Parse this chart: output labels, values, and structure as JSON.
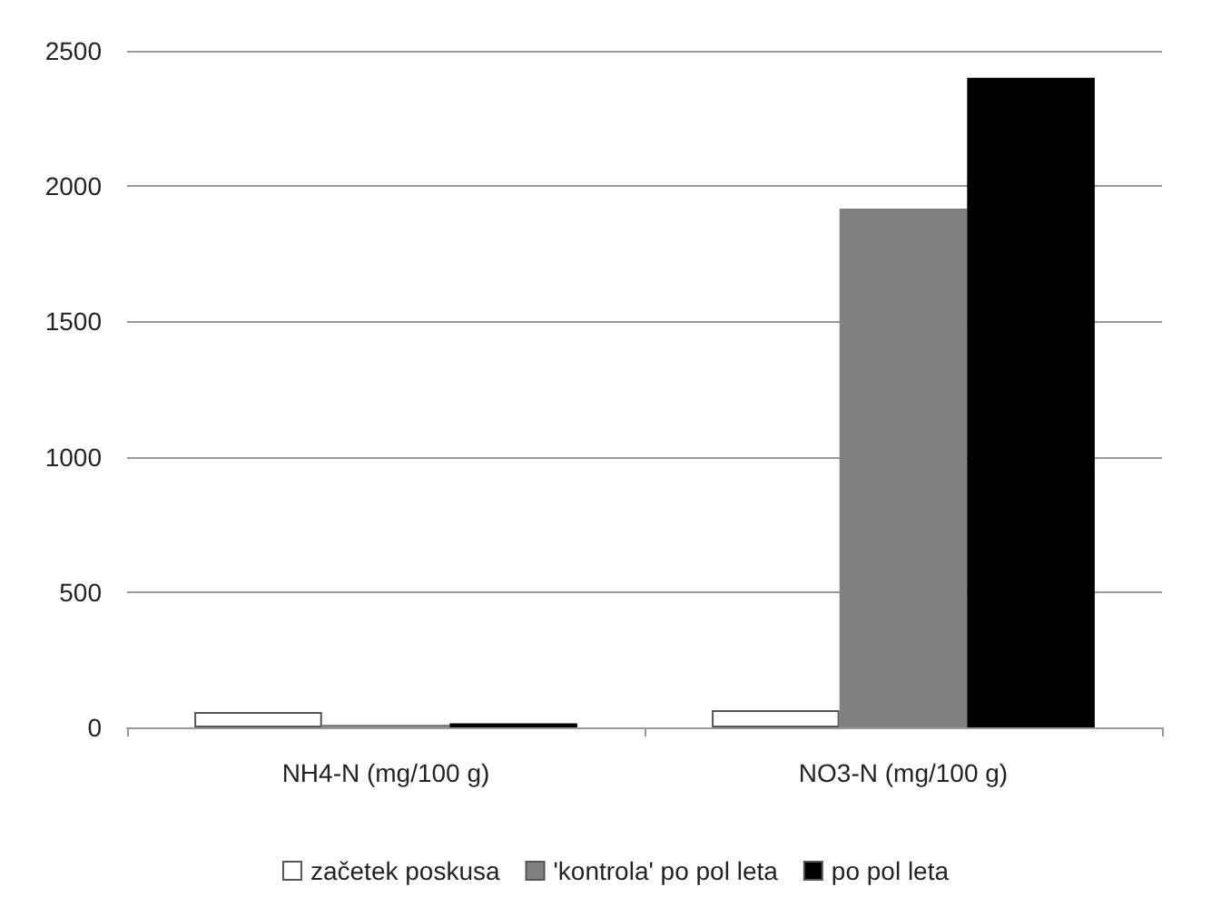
{
  "chart_data": {
    "type": "bar",
    "categories": [
      "NH4-N (mg/100 g)",
      "NO3-N (mg/100 g)"
    ],
    "series": [
      {
        "name": "začetek poskusa",
        "color": "#ffffff",
        "values": [
          57,
          64
        ]
      },
      {
        "name": "'kontrola' po pol leta",
        "color": "#808080",
        "values": [
          10,
          1917
        ]
      },
      {
        "name": "po pol leta",
        "color": "#000000",
        "values": [
          15,
          2400
        ]
      }
    ],
    "ylim": [
      0,
      2500
    ],
    "yticks": [
      0,
      500,
      1000,
      1500,
      2000,
      2500
    ],
    "grid": "y",
    "legend": "bottom"
  }
}
